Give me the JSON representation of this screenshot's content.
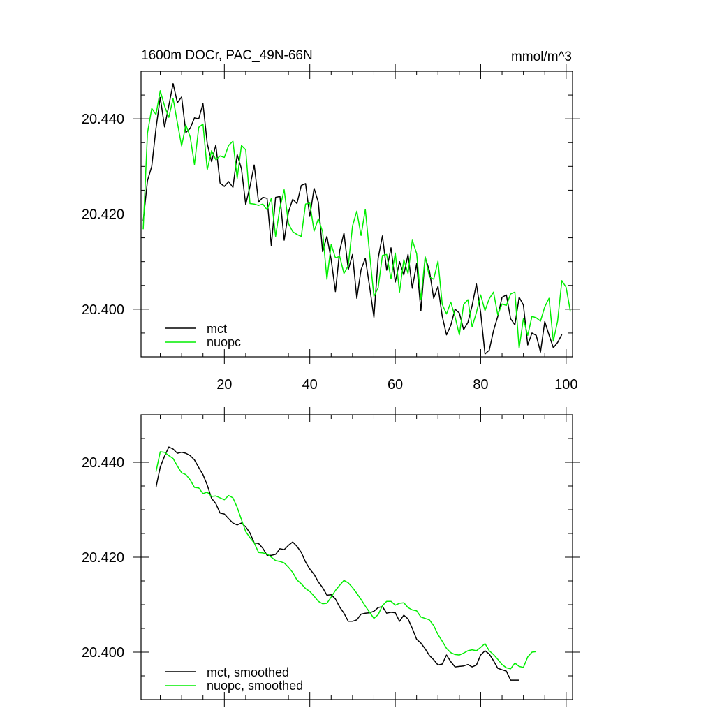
{
  "colors": {
    "mct": "#000000",
    "nuopc": "#00ee00"
  },
  "chart_data": [
    {
      "type": "line",
      "title": "1600m DOCr, PAC_49N-66N",
      "units": "mmol/m^3",
      "xlim": [
        0.5,
        101.5
      ],
      "ylim": [
        20.39,
        20.45
      ],
      "xticks": [
        20,
        40,
        60,
        80,
        100
      ],
      "xtick_labels": [
        "20",
        "40",
        "60",
        "80",
        "100"
      ],
      "yticks": [
        20.4,
        20.42,
        20.44
      ],
      "ytick_labels": [
        "20.400",
        "20.420",
        "20.440"
      ],
      "legend": "bottom-left",
      "series": [
        {
          "name": "mct",
          "color": "#000000",
          "x_start": 1,
          "values": [
            20.4185,
            20.427,
            20.43,
            20.438,
            20.4445,
            20.4383,
            20.4428,
            20.4474,
            20.4434,
            20.4446,
            20.4371,
            20.438,
            20.4402,
            20.44,
            20.4432,
            20.4348,
            20.431,
            20.4345,
            20.4265,
            20.4258,
            20.4268,
            20.4256,
            20.4325,
            20.4295,
            20.422,
            20.4258,
            20.4303,
            20.4225,
            20.4235,
            20.4233,
            20.4133,
            20.4235,
            20.4237,
            20.4145,
            20.4204,
            20.4231,
            20.4222,
            20.426,
            20.4264,
            20.4195,
            20.4254,
            20.4225,
            20.4121,
            20.4153,
            20.4104,
            20.4037,
            20.4123,
            20.416,
            20.4083,
            20.4115,
            20.4023,
            20.4083,
            20.4107,
            20.4047,
            20.3983,
            20.4107,
            20.4154,
            20.4082,
            20.4129,
            20.4057,
            20.41,
            20.4072,
            20.4115,
            20.4044,
            20.4096,
            20.3997,
            20.4109,
            20.4081,
            20.4023,
            20.4048,
            20.3985,
            20.3946,
            20.3966,
            20.4,
            20.3992,
            20.3957,
            20.3972,
            20.4008,
            20.4053,
            20.3993,
            20.3906,
            20.3914,
            20.3955,
            20.3985,
            20.4025,
            20.403,
            20.398,
            20.3967,
            20.4025,
            20.4009,
            20.3925,
            20.395,
            20.3945,
            20.391,
            20.3974,
            20.3946,
            20.3919,
            20.393,
            20.3947
          ]
        },
        {
          "name": "nuopc",
          "color": "#00ee00",
          "x_start": 1,
          "values": [
            20.4168,
            20.437,
            20.4422,
            20.4409,
            20.4459,
            20.4427,
            20.4403,
            20.4443,
            20.4392,
            20.4343,
            20.4387,
            20.4362,
            20.4304,
            20.4382,
            20.4389,
            20.4293,
            20.4333,
            20.4314,
            20.4322,
            20.4319,
            20.4344,
            20.4353,
            20.4275,
            20.4344,
            20.4335,
            20.4222,
            20.4221,
            20.4218,
            20.4221,
            20.4209,
            20.4233,
            20.4153,
            20.4213,
            20.4251,
            20.418,
            20.4163,
            20.4157,
            20.4153,
            20.4221,
            20.4223,
            20.4164,
            20.419,
            20.4163,
            20.4063,
            20.4136,
            20.4108,
            20.4111,
            20.4075,
            20.4092,
            20.4175,
            20.4206,
            20.4155,
            20.421,
            20.4116,
            20.4027,
            20.4045,
            20.4113,
            20.4115,
            20.4064,
            20.4118,
            20.4036,
            20.4104,
            20.4075,
            20.4145,
            20.4117,
            20.402,
            20.411,
            20.4068,
            20.4063,
            20.4101,
            20.401,
            20.399,
            20.4015,
            20.3984,
            20.3946,
            20.401,
            20.402,
            20.3963,
            20.3993,
            20.403,
            20.3997,
            20.4022,
            20.4036,
            20.3988,
            20.4011,
            20.4008,
            20.4032,
            20.4036,
            20.3918,
            20.398,
            20.3945,
            20.3985,
            20.3982,
            20.3975,
            20.4005,
            20.4023,
            20.3933,
            20.3975,
            20.406,
            20.4046,
            20.3995
          ]
        }
      ]
    },
    {
      "type": "line",
      "xlim": [
        0.5,
        101.5
      ],
      "ylim": [
        20.39,
        20.45
      ],
      "xticks": [
        20,
        40,
        60,
        80,
        100
      ],
      "yticks": [
        20.4,
        20.42,
        20.44
      ],
      "ytick_labels": [
        "20.400",
        "20.420",
        "20.440"
      ],
      "legend": "bottom-left",
      "series": [
        {
          "name": "mct, smoothed",
          "color": "#000000",
          "x_start": 4,
          "values": [
            20.4347,
            20.439,
            20.4413,
            20.4432,
            20.4428,
            20.4419,
            20.4421,
            20.4419,
            20.4414,
            20.4405,
            20.4389,
            20.4374,
            20.4352,
            20.4324,
            20.4313,
            20.4293,
            20.4291,
            20.4281,
            20.4272,
            20.4268,
            20.4272,
            20.4264,
            20.4251,
            20.423,
            20.4229,
            20.4219,
            20.4204,
            20.4204,
            20.4206,
            20.4218,
            20.4216,
            20.4225,
            20.4232,
            20.4223,
            20.421,
            20.419,
            20.4175,
            20.4164,
            20.4148,
            20.4136,
            20.412,
            20.4121,
            20.4112,
            20.4095,
            20.4082,
            20.4065,
            20.4065,
            20.4068,
            20.408,
            20.4082,
            20.4083,
            20.4086,
            20.4094,
            20.4096,
            20.4082,
            20.4084,
            20.4083,
            20.4065,
            20.4078,
            20.407,
            20.405,
            20.4027,
            20.4019,
            20.4007,
            20.3993,
            20.3984,
            20.3973,
            20.3975,
            20.3994,
            20.398,
            20.3969,
            20.397,
            20.3971,
            20.3974,
            20.3969,
            20.3973,
            20.3994,
            20.4003,
            20.3996,
            20.3982,
            20.3966,
            20.3963,
            20.396,
            20.3941,
            20.3941,
            20.3941
          ]
        },
        {
          "name": "nuopc, smoothed",
          "color": "#00ee00",
          "x_start": 4,
          "values": [
            20.438,
            20.4422,
            20.4421,
            20.4414,
            20.4408,
            20.4392,
            20.4378,
            20.4374,
            20.4363,
            20.4347,
            20.4346,
            20.4334,
            20.4337,
            20.4328,
            20.4329,
            20.4325,
            20.4321,
            20.433,
            20.4325,
            20.4305,
            20.4279,
            20.4254,
            20.4241,
            20.423,
            20.421,
            20.4209,
            20.4207,
            20.42,
            20.4193,
            20.4191,
            20.4188,
            20.4179,
            20.4168,
            20.4152,
            20.4144,
            20.4134,
            20.4128,
            20.4118,
            20.4107,
            20.4102,
            20.4103,
            20.4116,
            20.413,
            20.4141,
            20.4151,
            20.4146,
            20.4136,
            20.4124,
            20.4111,
            20.4097,
            20.4084,
            20.4071,
            20.4079,
            20.4098,
            20.4107,
            20.4107,
            20.4099,
            20.4103,
            20.4104,
            20.4094,
            20.4089,
            20.4087,
            20.4074,
            20.4071,
            20.4068,
            20.4056,
            20.4037,
            20.4023,
            20.4008,
            20.3999,
            20.3995,
            20.3994,
            20.3998,
            20.4003,
            20.4005,
            20.4003,
            20.401,
            20.4018,
            20.4003,
            20.3995,
            20.3985,
            20.3974,
            20.3967,
            20.3965,
            20.3977,
            20.397,
            20.3968,
            20.399,
            20.4,
            20.4001
          ]
        }
      ]
    }
  ]
}
